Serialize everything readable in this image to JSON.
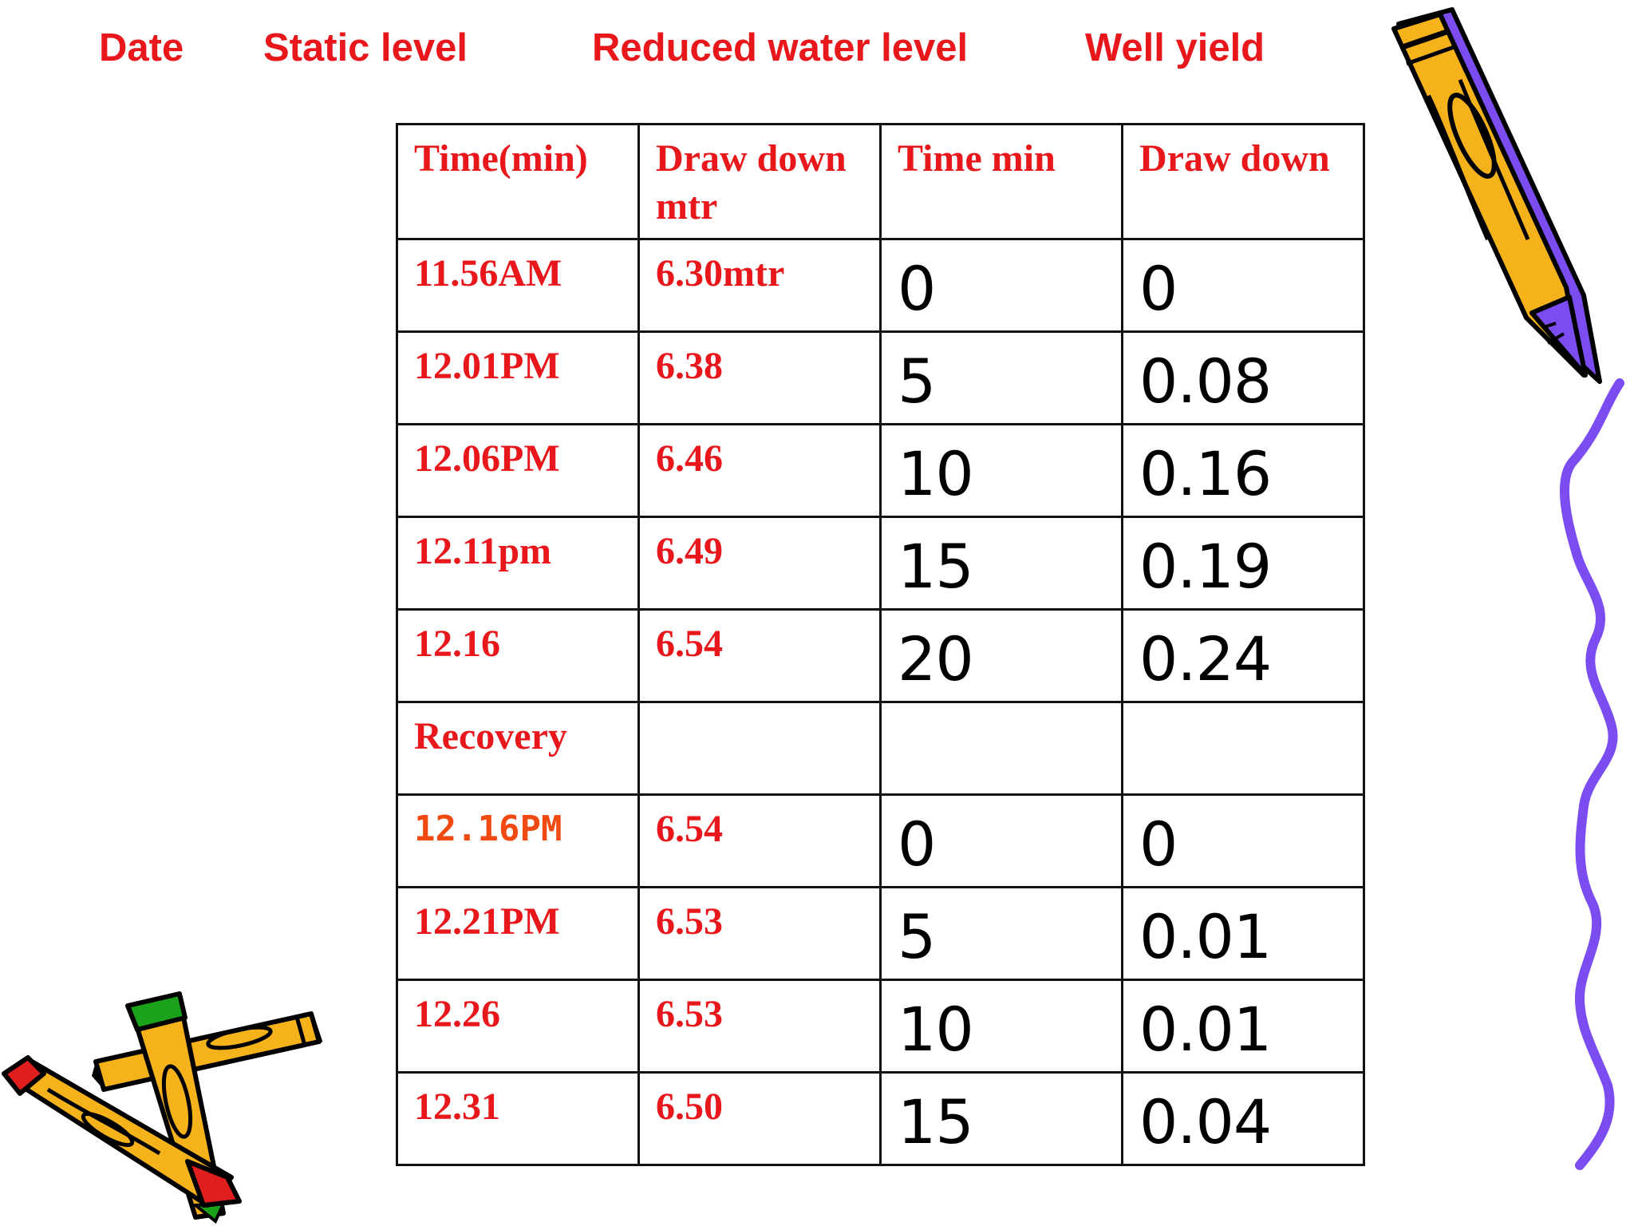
{
  "header": {
    "date_label": "Date",
    "static_level_label": "Static level",
    "reduced_water_level_label": "Reduced water level",
    "well_yield_label": "Well yield"
  },
  "table": {
    "columns": [
      "Time(min)",
      "Draw down mtr",
      "Time min",
      "Draw down"
    ],
    "rows": [
      {
        "time": "11.56AM",
        "draw_down_mtr": "6.30mtr",
        "time_min": "0",
        "draw_down": "0"
      },
      {
        "time": "12.01PM",
        "draw_down_mtr": "6.38",
        "time_min": "5",
        "draw_down": "0.08"
      },
      {
        "time": "12.06PM",
        "draw_down_mtr": "6.46",
        "time_min": "10",
        "draw_down": "0.16"
      },
      {
        "time": "12.11pm",
        "draw_down_mtr": "6.49",
        "time_min": "15",
        "draw_down": "0.19"
      },
      {
        "time": "12.16",
        "draw_down_mtr": "6.54",
        "time_min": "20",
        "draw_down": "0.24"
      },
      {
        "time": "Recovery",
        "draw_down_mtr": "",
        "time_min": "",
        "draw_down": ""
      },
      {
        "time": "12.16PM",
        "draw_down_mtr": "6.54",
        "time_min": "0",
        "draw_down": "0"
      },
      {
        "time": "12.21PM",
        "draw_down_mtr": "6.53",
        "time_min": "5",
        "draw_down": "0.01"
      },
      {
        "time": "12.26",
        "draw_down_mtr": "6.53",
        "time_min": "10",
        "draw_down": "0.01"
      },
      {
        "time": "12.31",
        "draw_down_mtr": "6.50",
        "time_min": "15",
        "draw_down": "0.04"
      }
    ]
  },
  "decorations": {
    "top_right": "pencil-icon",
    "right_edge": "squiggle-line",
    "bottom_left": "crayons-icon"
  },
  "colors": {
    "heading_red": "#e8171b",
    "mono_orange_red": "#f04a12",
    "pencil_yellow": "#f6b21b",
    "squiggle_purple": "#7b4df0",
    "crayon_red": "#e01e1e",
    "crayon_green": "#1aa31a"
  }
}
